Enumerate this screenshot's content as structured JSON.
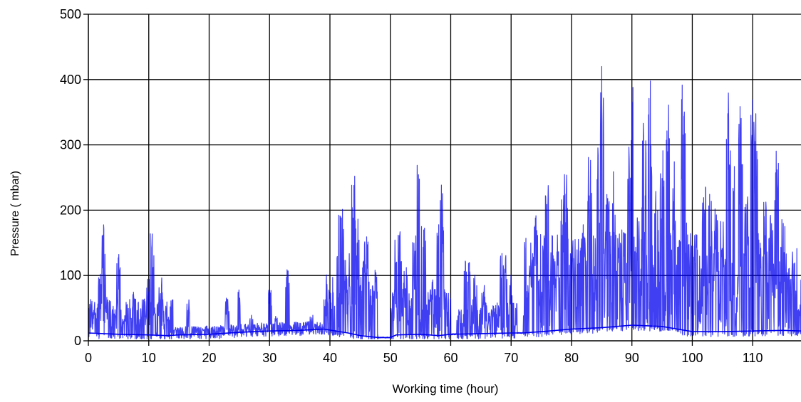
{
  "chart_data": {
    "type": "line",
    "xlabel": "Working time (hour)",
    "ylabel": "Pressure ( mbar)",
    "xlim": [
      0,
      118
    ],
    "ylim": [
      0,
      500
    ],
    "x_ticks": [
      0,
      10,
      20,
      30,
      40,
      50,
      60,
      70,
      80,
      90,
      100,
      110
    ],
    "y_ticks": [
      0,
      100,
      200,
      300,
      400,
      500
    ],
    "grid": true,
    "legend": "none",
    "series": [
      {
        "color": "#0000ee",
        "baseline": [
          [
            0,
            12
          ],
          [
            5,
            10
          ],
          [
            10,
            9
          ],
          [
            13,
            8
          ],
          [
            15,
            9
          ],
          [
            20,
            10
          ],
          [
            25,
            13
          ],
          [
            30,
            15
          ],
          [
            35,
            16
          ],
          [
            39,
            18
          ],
          [
            43,
            12
          ],
          [
            45,
            8
          ],
          [
            48,
            5
          ],
          [
            50,
            5
          ],
          [
            51,
            9
          ],
          [
            55,
            10
          ],
          [
            58,
            8
          ],
          [
            60,
            10
          ],
          [
            65,
            11
          ],
          [
            70,
            12
          ],
          [
            72,
            12
          ],
          [
            75,
            14
          ],
          [
            80,
            18
          ],
          [
            85,
            20
          ],
          [
            90,
            24
          ],
          [
            95,
            22
          ],
          [
            100,
            14
          ],
          [
            105,
            14
          ],
          [
            110,
            15
          ],
          [
            115,
            16
          ],
          [
            118,
            15
          ]
        ],
        "segments": [
          {
            "x": [
              0,
              14
            ],
            "peaks": [
              [
                1,
                55
              ],
              [
                2,
                125
              ],
              [
                2.5,
                185
              ],
              [
                3,
                70
              ],
              [
                4,
                60
              ],
              [
                5,
                135
              ],
              [
                6,
                40
              ],
              [
                7.5,
                90
              ],
              [
                10,
                110
              ],
              [
                10.5,
                185
              ],
              [
                11,
                60
              ],
              [
                12,
                105
              ],
              [
                13,
                50
              ]
            ],
            "noise": 35
          },
          {
            "x": [
              14,
              39
            ],
            "peaks": [
              [
                16.5,
                68
              ],
              [
                19,
                20
              ],
              [
                22,
                25
              ],
              [
                23,
                70
              ],
              [
                25,
                83
              ],
              [
                27,
                40
              ],
              [
                30,
                90
              ],
              [
                31,
                40
              ],
              [
                33,
                120
              ],
              [
                37,
                48
              ]
            ],
            "noise": 8
          },
          {
            "x": [
              39,
              48
            ],
            "peaks": [
              [
                40,
                85
              ],
              [
                41.5,
                220
              ],
              [
                42,
                233
              ],
              [
                42.5,
                130
              ],
              [
                43.5,
                250
              ],
              [
                44,
                272
              ],
              [
                44.5,
                200
              ],
              [
                45,
                120
              ],
              [
                45.5,
                130
              ],
              [
                46,
                175
              ],
              [
                47.5,
                112
              ]
            ],
            "noise": 55
          },
          {
            "x": [
              50,
              60
            ],
            "peaks": [
              [
                51,
                175
              ],
              [
                51.5,
                182
              ],
              [
                52.5,
                120
              ],
              [
                54,
                180
              ],
              [
                54.5,
                297
              ],
              [
                55.5,
                210
              ],
              [
                57,
                95
              ],
              [
                58,
                210
              ],
              [
                58.5,
                260
              ],
              [
                59,
                100
              ]
            ],
            "noise": 45
          },
          {
            "x": [
              61,
              71
            ],
            "peaks": [
              [
                62.5,
                140
              ],
              [
                63,
                125
              ],
              [
                64,
                110
              ],
              [
                65.5,
                88
              ],
              [
                67,
                60
              ],
              [
                68.5,
                150
              ],
              [
                69,
                140
              ],
              [
                70,
                108
              ]
            ],
            "noise": 30
          },
          {
            "x": [
              72,
              101
            ],
            "peaks": [
              [
                73,
                120
              ],
              [
                74,
                205
              ],
              [
                76,
                260
              ],
              [
                77,
                190
              ],
              [
                78.5,
                238
              ],
              [
                79,
                307
              ],
              [
                80,
                170
              ],
              [
                81,
                170
              ],
              [
                82,
                205
              ],
              [
                83,
                327
              ],
              [
                84.5,
                320
              ],
              [
                85,
                428
              ],
              [
                86,
                240
              ],
              [
                87,
                320
              ],
              [
                88,
                200
              ],
              [
                89.5,
                313
              ],
              [
                90,
                425
              ],
              [
                91,
                200
              ],
              [
                92,
                360
              ],
              [
                93,
                410
              ],
              [
                94,
                270
              ],
              [
                95,
                320
              ],
              [
                96,
                380
              ],
              [
                97,
                290
              ],
              [
                98,
                170
              ],
              [
                98.5,
                450
              ],
              [
                99,
                200
              ],
              [
                100,
                210
              ],
              [
                100.5,
                220
              ]
            ],
            "noise": 95
          },
          {
            "x": [
              101,
              118
            ],
            "peaks": [
              [
                102,
                275
              ],
              [
                103,
                245
              ],
              [
                104,
                245
              ],
              [
                105,
                210
              ],
              [
                106,
                413
              ],
              [
                107,
                290
              ],
              [
                108,
                390
              ],
              [
                109,
                240
              ],
              [
                110,
                410
              ],
              [
                110.5,
                365
              ],
              [
                111,
                180
              ],
              [
                112,
                240
              ],
              [
                113,
                200
              ],
              [
                114,
                310
              ],
              [
                115,
                225
              ],
              [
                116,
                120
              ],
              [
                117.5,
                55
              ]
            ],
            "noise": 80
          }
        ]
      }
    ]
  }
}
